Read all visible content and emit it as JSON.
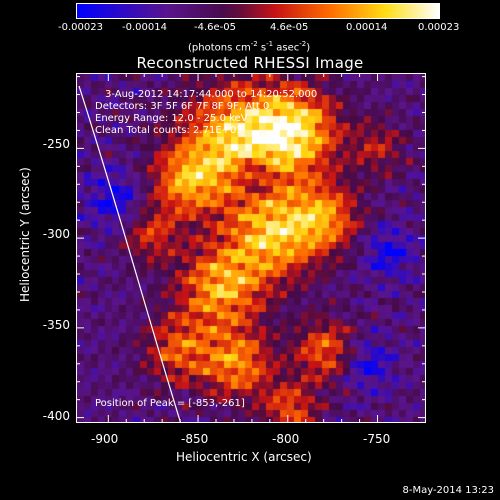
{
  "colorbar": {
    "ticks": [
      "-0.00023",
      "-0.00014",
      "-4.6e-05",
      "4.6e-05",
      "0.00014",
      "0.00023"
    ],
    "units": "(photons cm",
    "units_exp1": "-2",
    "units_mid": " s",
    "units_exp2": "-1",
    "units_mid2": " asec",
    "units_exp3": "-2",
    "units_end": ")"
  },
  "title": "Reconstructed RHESSI Image",
  "annotations": {
    "time": "3-Aug-2012 14:17:44.000 to 14:20:52.000",
    "detectors": "Detectors: 3F 5F 6F 7F 8F 9F, Att 0",
    "energy": "Energy Range: 12.0 - 25.0 keV",
    "clean": "Clean     Total counts: 2.71E+03",
    "peak": "Position of Peak = [-853,-261]"
  },
  "chart_data": {
    "type": "heatmap",
    "title": "Reconstructed RHESSI Image",
    "xlabel": "Heliocentric X (arcsec)",
    "ylabel": "Heliocentric Y (arcsec)",
    "xlim": [
      -918,
      -723
    ],
    "ylim": [
      -403,
      -208
    ],
    "xticks": [
      "-900",
      "-850",
      "-800",
      "-750"
    ],
    "yticks": [
      "-250",
      "-300",
      "-350",
      "-400"
    ],
    "colorbar_range": [
      -0.00023,
      0.00023
    ],
    "colormap": "blue-purple-red-yellow-white",
    "peak_position": [
      -853,
      -261
    ],
    "limb_line": "white curve along left side"
  },
  "footer": {
    "date": "8-May-2014 13:23"
  },
  "colors": {
    "background": "#000000",
    "axes": "#ffffff"
  }
}
